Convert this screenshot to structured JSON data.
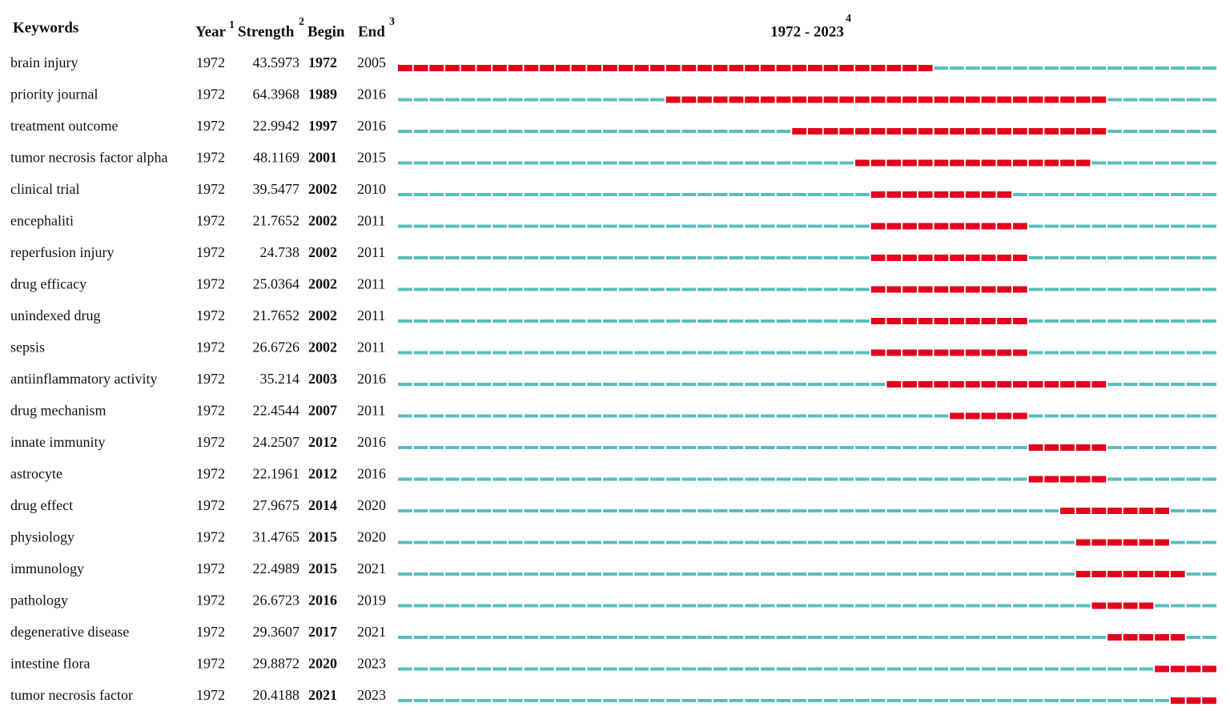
{
  "chart_data": {
    "type": "burst",
    "headers": {
      "keyword": "Keywords",
      "year": {
        "text": "Year",
        "sup": "1"
      },
      "strength": {
        "text": "Strength",
        "sup": "2"
      },
      "begin": "Begin",
      "end": {
        "text": "End",
        "sup": "3"
      },
      "range": {
        "text": "1972 - 2023",
        "sup": "4"
      }
    },
    "xlim": [
      1972,
      2023
    ],
    "colors": {
      "base": "#5bbdbd",
      "burst": "#e3001b"
    },
    "rows": [
      {
        "keyword": "brain injury",
        "year": 1972,
        "strength": 43.5973,
        "begin": 1972,
        "end": 2005
      },
      {
        "keyword": "priority journal",
        "year": 1972,
        "strength": 64.3968,
        "begin": 1989,
        "end": 2016
      },
      {
        "keyword": "treatment outcome",
        "year": 1972,
        "strength": 22.9942,
        "begin": 1997,
        "end": 2016
      },
      {
        "keyword": "tumor necrosis factor alpha",
        "year": 1972,
        "strength": 48.1169,
        "begin": 2001,
        "end": 2015
      },
      {
        "keyword": "clinical trial",
        "year": 1972,
        "strength": 39.5477,
        "begin": 2002,
        "end": 2010
      },
      {
        "keyword": "encephaliti",
        "year": 1972,
        "strength": 21.7652,
        "begin": 2002,
        "end": 2011
      },
      {
        "keyword": "reperfusion injury",
        "year": 1972,
        "strength": 24.738,
        "begin": 2002,
        "end": 2011
      },
      {
        "keyword": "drug efficacy",
        "year": 1972,
        "strength": 25.0364,
        "begin": 2002,
        "end": 2011
      },
      {
        "keyword": "unindexed drug",
        "year": 1972,
        "strength": 21.7652,
        "begin": 2002,
        "end": 2011
      },
      {
        "keyword": "sepsis",
        "year": 1972,
        "strength": 26.6726,
        "begin": 2002,
        "end": 2011
      },
      {
        "keyword": "antiinflammatory activity",
        "year": 1972,
        "strength": 35.214,
        "begin": 2003,
        "end": 2016
      },
      {
        "keyword": "drug mechanism",
        "year": 1972,
        "strength": 22.4544,
        "begin": 2007,
        "end": 2011
      },
      {
        "keyword": "innate immunity",
        "year": 1972,
        "strength": 24.2507,
        "begin": 2012,
        "end": 2016
      },
      {
        "keyword": "astrocyte",
        "year": 1972,
        "strength": 22.1961,
        "begin": 2012,
        "end": 2016
      },
      {
        "keyword": "drug effect",
        "year": 1972,
        "strength": 27.9675,
        "begin": 2014,
        "end": 2020
      },
      {
        "keyword": "physiology",
        "year": 1972,
        "strength": 31.4765,
        "begin": 2015,
        "end": 2020
      },
      {
        "keyword": "immunology",
        "year": 1972,
        "strength": 22.4989,
        "begin": 2015,
        "end": 2021
      },
      {
        "keyword": "pathology",
        "year": 1972,
        "strength": 26.6723,
        "begin": 2016,
        "end": 2019
      },
      {
        "keyword": "degenerative disease",
        "year": 1972,
        "strength": 29.3607,
        "begin": 2017,
        "end": 2021
      },
      {
        "keyword": "intestine flora",
        "year": 1972,
        "strength": 29.8872,
        "begin": 2020,
        "end": 2023
      },
      {
        "keyword": "tumor necrosis factor",
        "year": 1972,
        "strength": 20.4188,
        "begin": 2021,
        "end": 2023
      }
    ]
  }
}
